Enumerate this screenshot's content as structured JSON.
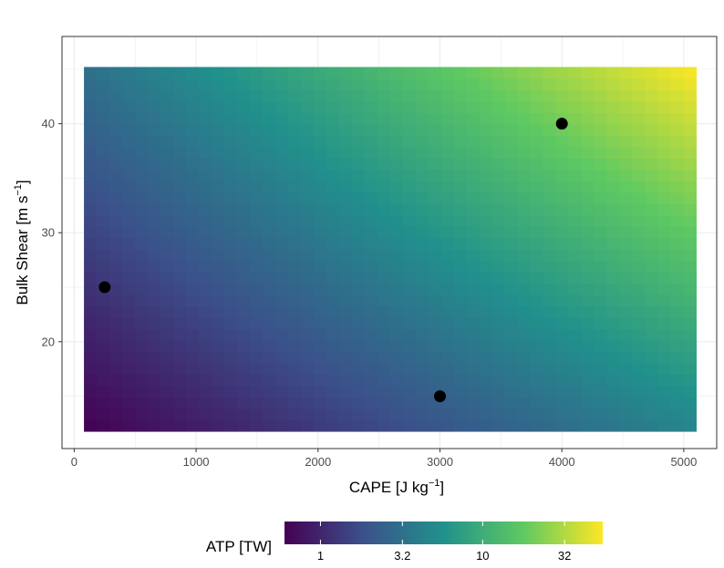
{
  "chart_data": {
    "type": "heatmap",
    "title": "",
    "xlabel": {
      "base": "CAPE [J kg",
      "sup": "−1",
      "end": "]"
    },
    "ylabel": {
      "base": "Bulk Shear [m s",
      "sup": "−1",
      "end": "]"
    },
    "xlim": [
      -100,
      5270
    ],
    "ylim": [
      10.2,
      48
    ],
    "x_ticks": [
      0,
      1000,
      2000,
      3000,
      4000,
      5000
    ],
    "x_tick_labels": [
      "0",
      "1000",
      "2000",
      "3000",
      "4000",
      "5000"
    ],
    "y_ticks": [
      20,
      30,
      40
    ],
    "y_tick_labels": [
      "20",
      "30",
      "40"
    ],
    "x_minor_ticks": [
      500,
      1500,
      2500,
      3500,
      4500
    ],
    "y_minor_ticks": [
      15,
      25,
      35,
      45
    ],
    "heatmap_x_range": [
      80,
      5100
    ],
    "heatmap_y_range": [
      11.8,
      45.2
    ],
    "points": [
      {
        "x": 250,
        "y": 25
      },
      {
        "x": 3000,
        "y": 15
      },
      {
        "x": 4000,
        "y": 40
      }
    ],
    "colorbar": {
      "title": "ATP [TW]",
      "scale": "log",
      "range": [
        0.6,
        55
      ],
      "ticks": [
        1,
        3.2,
        10,
        32
      ],
      "tick_labels": [
        "1",
        "3.2",
        "10",
        "32"
      ],
      "colors": [
        "#440154",
        "#3b528b",
        "#21918c",
        "#5ec962",
        "#fde725"
      ]
    },
    "grid": true,
    "legend_position": "bottom"
  }
}
